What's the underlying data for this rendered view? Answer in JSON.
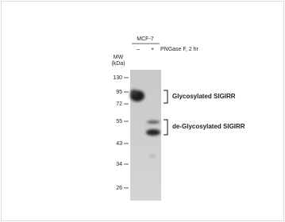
{
  "header": {
    "cell_line": "MCF-7",
    "lanes": [
      "–",
      "+"
    ],
    "treatment": "PNGase F, 2 hr"
  },
  "mw_label": {
    "line1": "MW",
    "line2": "(kDa)"
  },
  "markers": [
    "130",
    "95",
    "72",
    "55",
    "43",
    "34",
    "26"
  ],
  "annotations": [
    "Glycosylated  SIGIRR",
    "de-Glycosylated  SIGIRR"
  ]
}
